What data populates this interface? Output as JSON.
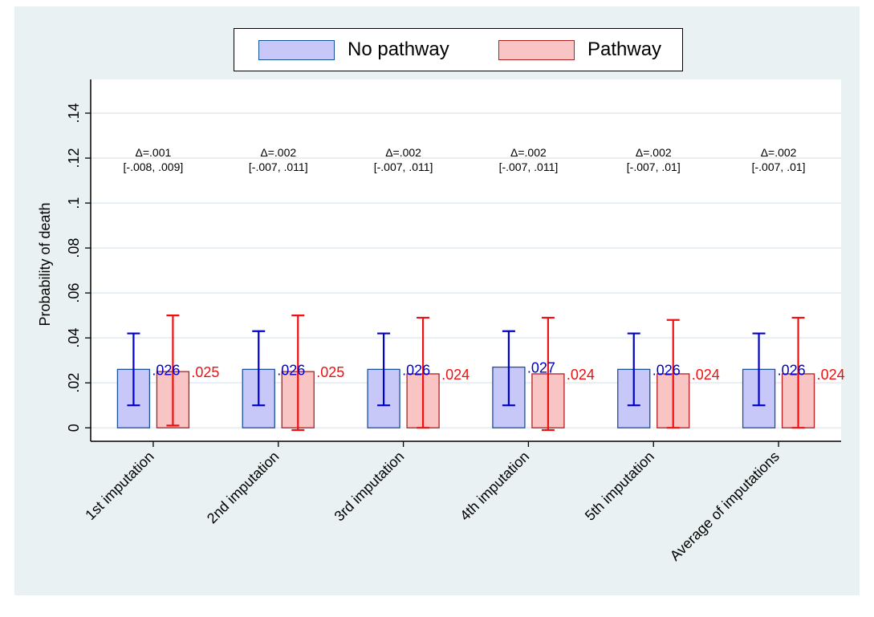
{
  "colors": {
    "figure_bg": "#eaf1f3",
    "plot_bg": "#ffffff",
    "grid": "#e8eef2",
    "no_pathway_fill": "#c8c8f8",
    "no_pathway_edge": "#1a4f9c",
    "no_pathway_ci": "#0000cc",
    "pathway_fill": "#f9c4c4",
    "pathway_edge": "#b02020",
    "pathway_ci": "#ee1111"
  },
  "legend": {
    "items": [
      {
        "label": "No pathway",
        "series": 0
      },
      {
        "label": "Pathway",
        "series": 1
      }
    ]
  },
  "chart_data": {
    "type": "bar",
    "title": "",
    "xlabel": "",
    "ylabel": "Probability of death",
    "ylim": [
      -0.006,
      0.155
    ],
    "yticks": [
      0,
      0.02,
      0.04,
      0.06,
      0.08,
      0.1,
      0.12,
      0.14
    ],
    "ytick_labels": [
      "0",
      ".02",
      ".04",
      ".06",
      ".08",
      ".1",
      ".12",
      ".14"
    ],
    "grid": true,
    "legend_position": "top",
    "categories": [
      "1st imputation",
      "2nd imputation",
      "3rd imputation",
      "4th imputation",
      "5th imputation",
      "Average of imputations"
    ],
    "series": [
      {
        "name": "No pathway",
        "values": [
          0.026,
          0.026,
          0.026,
          0.027,
          0.026,
          0.026
        ],
        "value_labels": [
          ".026",
          ".026",
          ".026",
          ".027",
          ".026",
          ".026"
        ],
        "ci_low": [
          0.01,
          0.01,
          0.01,
          0.01,
          0.01,
          0.01
        ],
        "ci_high": [
          0.042,
          0.043,
          0.042,
          0.043,
          0.042,
          0.042
        ]
      },
      {
        "name": "Pathway",
        "values": [
          0.025,
          0.025,
          0.024,
          0.024,
          0.024,
          0.024
        ],
        "value_labels": [
          ".025",
          ".025",
          ".024",
          ".024",
          ".024",
          ".024"
        ],
        "ci_low": [
          0.001,
          -0.001,
          0.0,
          -0.001,
          0.0,
          0.0
        ],
        "ci_high": [
          0.05,
          0.05,
          0.049,
          0.049,
          0.048,
          0.049
        ]
      }
    ],
    "annotations": [
      {
        "line1": "Δ=.001",
        "line2": "[-.008, .009]"
      },
      {
        "line1": "Δ=.002",
        "line2": "[-.007, .011]"
      },
      {
        "line1": "Δ=.002",
        "line2": "[-.007, .011]"
      },
      {
        "line1": "Δ=.002",
        "line2": "[-.007, .011]"
      },
      {
        "line1": "Δ=.002",
        "line2": "[-.007, .01]"
      },
      {
        "line1": "Δ=.002",
        "line2": "[-.007, .01]"
      }
    ],
    "annotation_y": 0.12
  }
}
